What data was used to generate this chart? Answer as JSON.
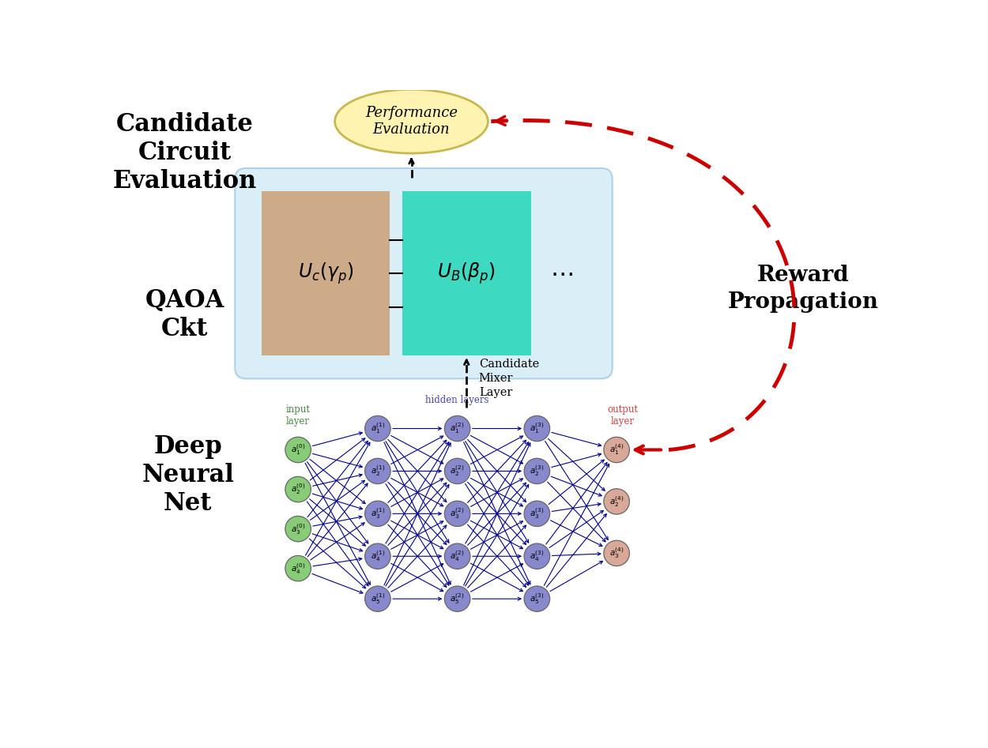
{
  "bg_color": "#ffffff",
  "candidate_circuit_label": "Candidate\nCircuit\nEvaluation",
  "qaoa_label": "QAOA\nCkt",
  "dnn_label": "Deep\nNeural\nNet",
  "reward_label": "Reward\nPropagation",
  "performance_label": "Performance\nEvaluation",
  "candidate_mixer_label": "Candidate\nMixer\nLayer",
  "input_layer_label": "input\nlayer",
  "hidden_layers_label": "hidden layers",
  "output_layer_label": "output\nlayer",
  "ellipse_color": "#fef3b0",
  "ellipse_edge": "#c8b850",
  "qaoa_box_color": "#daeef8",
  "uc_box_color": "#cdaa88",
  "ub_box_color": "#3dd9c0",
  "input_node_color": "#88cc78",
  "hidden_node_color": "#8888cc",
  "output_node_color": "#d8a898",
  "reward_arrow_color": "#cc0000",
  "dnn_arrow_color": "#000088",
  "line_color": "#000000"
}
